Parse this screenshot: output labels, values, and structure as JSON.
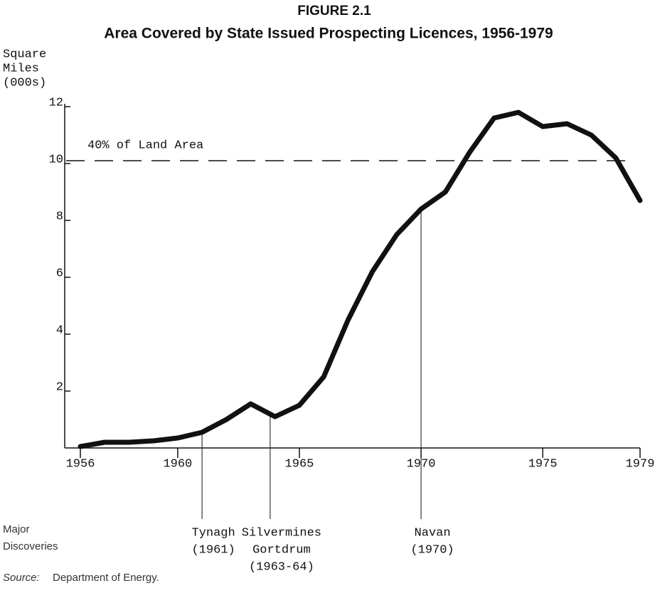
{
  "chart_data": {
    "type": "line",
    "title": "FIGURE 2.1",
    "subtitle": "Area Covered by State Issued Prospecting Licences, 1956-1979",
    "y_label": [
      "Square",
      "Miles",
      "(000s)"
    ],
    "x": [
      1956,
      1957,
      1958,
      1959,
      1960,
      1961,
      1962,
      1963,
      1964,
      1965,
      1966,
      1967,
      1968,
      1969,
      1970,
      1971,
      1972,
      1973,
      1974,
      1975,
      1976,
      1977,
      1978,
      1979
    ],
    "series": [
      {
        "color": "#111111",
        "values": [
          0.05,
          0.2,
          0.2,
          0.25,
          0.35,
          0.55,
          1.0,
          1.55,
          1.1,
          1.5,
          2.5,
          4.5,
          6.2,
          7.5,
          8.4,
          9.0,
          10.4,
          11.6,
          11.8,
          11.3,
          11.4,
          11.0,
          10.2,
          8.7
        ]
      }
    ],
    "xlim": [
      1956,
      1979
    ],
    "xticks": [
      1956,
      1960,
      1965,
      1970,
      1975,
      1979
    ],
    "ylim": [
      0,
      12
    ],
    "yticks": [
      2,
      4,
      6,
      8,
      10,
      12
    ],
    "reference_line": {
      "label": "40% of Land Area",
      "value": 10.1
    },
    "discoveries_label": [
      "Major",
      "Discoveries"
    ],
    "discoveries": [
      {
        "x": 1961,
        "label": [
          "Tynagh",
          "(1961)"
        ]
      },
      {
        "x": 1963.8,
        "label": [
          "Silvermines",
          "Gortdrum",
          "(1963-64)"
        ]
      },
      {
        "x": 1970,
        "label": [
          "Navan",
          "(1970)"
        ]
      }
    ],
    "source_label": "Source:",
    "source": "Department of Energy."
  }
}
